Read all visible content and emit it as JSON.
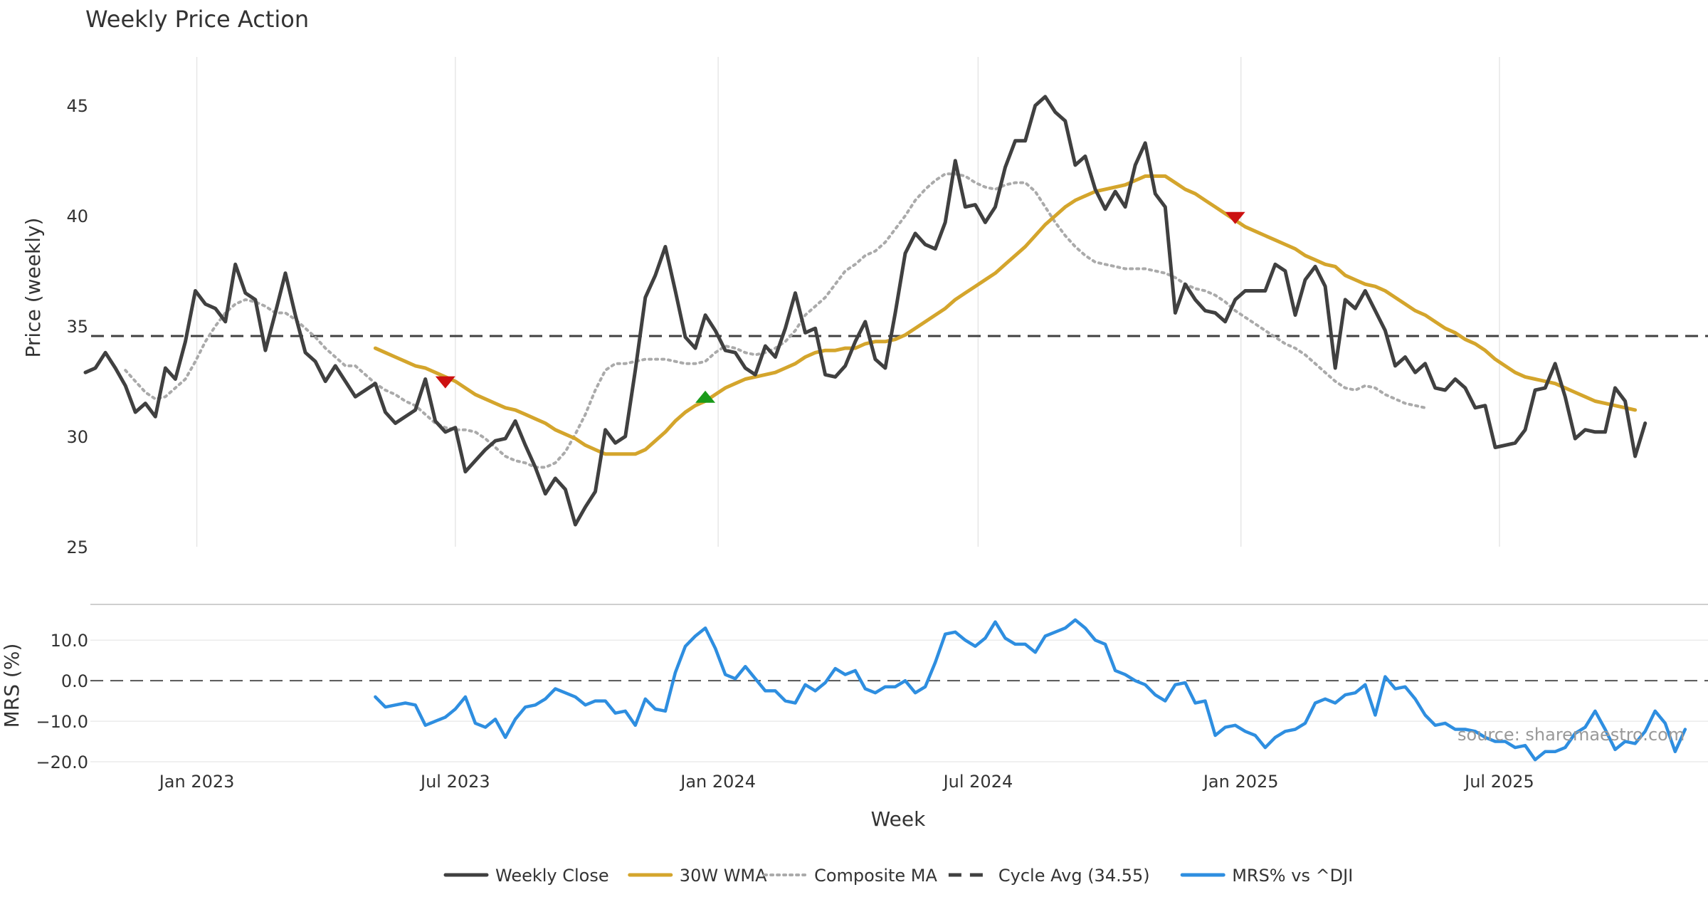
{
  "chart_data": {
    "title": "Weekly Price Action",
    "type": "line",
    "source_note": "source: sharemaestro.com",
    "x_range": [
      "2022-10-15",
      "2025-11-24"
    ],
    "x_ticks": [
      {
        "date": "2023-01-01",
        "label": "Jan 2023"
      },
      {
        "date": "2023-07-01",
        "label": "Jul 2023"
      },
      {
        "date": "2024-01-01",
        "label": "Jan 2024"
      },
      {
        "date": "2024-07-01",
        "label": "Jul 2024"
      },
      {
        "date": "2025-01-01",
        "label": "Jan 2025"
      },
      {
        "date": "2025-07-01",
        "label": "Jul 2025"
      }
    ],
    "xlabel": "Week",
    "price_panel": {
      "ylabel": "Price (weekly)",
      "ylim": [
        25,
        47.2
      ],
      "yticks": [
        25,
        30,
        35,
        40,
        45
      ],
      "grid": true,
      "series": [
        {
          "name": "Weekly Close",
          "color": "#404040",
          "style": "solid",
          "start": "2022-10-15",
          "step_days": 7,
          "values": [
            32.9,
            33.1,
            33.8,
            33.1,
            32.3,
            31.1,
            31.5,
            30.9,
            33.1,
            32.6,
            34.3,
            36.6,
            36.0,
            35.8,
            35.2,
            37.8,
            36.5,
            36.2,
            33.9,
            35.6,
            37.4,
            35.5,
            33.8,
            33.4,
            32.5,
            33.2,
            32.5,
            31.8,
            32.1,
            32.4,
            31.1,
            30.6,
            30.9,
            31.2,
            32.6,
            30.7,
            30.2,
            30.4,
            28.4,
            28.9,
            29.4,
            29.8,
            29.9,
            30.7,
            29.6,
            28.6,
            27.4,
            28.1,
            27.6,
            26.0,
            26.8,
            27.5,
            30.3,
            29.7,
            30.0,
            33.0,
            36.3,
            37.3,
            38.6,
            36.6,
            34.5,
            34.0,
            35.5,
            34.8,
            33.9,
            33.8,
            33.1,
            32.8,
            34.1,
            33.6,
            34.9,
            36.5,
            34.7,
            34.9,
            32.8,
            32.7,
            33.2,
            34.3,
            35.2,
            33.5,
            33.1,
            35.6,
            38.3,
            39.2,
            38.7,
            38.5,
            39.7,
            42.5,
            40.4,
            40.5,
            39.7,
            40.4,
            42.2,
            43.4,
            43.4,
            45.0,
            45.4,
            44.7,
            44.3,
            42.3,
            42.7,
            41.2,
            40.3,
            41.1,
            40.4,
            42.3,
            43.3,
            41.0,
            40.4,
            35.6,
            36.9,
            36.2,
            35.7,
            35.6,
            35.2,
            36.2,
            36.6,
            36.6,
            36.6,
            37.8,
            37.5,
            35.5,
            37.1,
            37.7,
            36.8,
            33.1,
            36.2,
            35.8,
            36.6,
            35.7,
            34.8,
            33.2,
            33.6,
            32.9,
            33.3,
            32.2,
            32.1,
            32.6,
            32.2,
            31.3,
            31.4,
            29.5,
            29.6,
            29.7,
            30.3,
            32.1,
            32.2,
            33.3,
            31.8,
            29.9,
            30.3,
            30.2,
            30.2,
            32.2,
            31.6,
            29.1,
            30.6
          ]
        },
        {
          "name": "30W WMA",
          "color": "#d4a52c",
          "style": "solid",
          "start": "2023-05-06",
          "step_days": 7,
          "values": [
            34.0,
            33.8,
            33.6,
            33.4,
            33.2,
            33.1,
            32.9,
            32.7,
            32.5,
            32.2,
            31.9,
            31.7,
            31.5,
            31.3,
            31.2,
            31.0,
            30.8,
            30.6,
            30.3,
            30.1,
            29.9,
            29.6,
            29.4,
            29.2,
            29.2,
            29.2,
            29.2,
            29.4,
            29.8,
            30.2,
            30.7,
            31.1,
            31.4,
            31.6,
            31.9,
            32.2,
            32.4,
            32.6,
            32.7,
            32.8,
            32.9,
            33.1,
            33.3,
            33.6,
            33.8,
            33.9,
            33.9,
            34.0,
            34.0,
            34.2,
            34.3,
            34.3,
            34.4,
            34.6,
            34.9,
            35.2,
            35.5,
            35.8,
            36.2,
            36.5,
            36.8,
            37.1,
            37.4,
            37.8,
            38.2,
            38.6,
            39.1,
            39.6,
            40.0,
            40.4,
            40.7,
            40.9,
            41.1,
            41.2,
            41.3,
            41.4,
            41.6,
            41.8,
            41.8,
            41.8,
            41.5,
            41.2,
            41.0,
            40.7,
            40.4,
            40.1,
            39.8,
            39.5,
            39.3,
            39.1,
            38.9,
            38.7,
            38.5,
            38.2,
            38.0,
            37.8,
            37.7,
            37.3,
            37.1,
            36.9,
            36.8,
            36.6,
            36.3,
            36.0,
            35.7,
            35.5,
            35.2,
            34.9,
            34.7,
            34.4,
            34.2,
            33.9,
            33.5,
            33.2,
            32.9,
            32.7,
            32.6,
            32.5,
            32.4,
            32.2,
            32.0,
            31.8,
            31.6,
            31.5,
            31.4,
            31.3,
            31.2
          ]
        },
        {
          "name": "Composite MA",
          "color": "#aaaaaa",
          "style": "dotted",
          "start": "2022-11-12",
          "step_days": 7,
          "values": [
            33.0,
            32.5,
            32.0,
            31.7,
            31.8,
            32.2,
            32.6,
            33.4,
            34.3,
            35.0,
            35.6,
            36.0,
            36.2,
            36.1,
            35.9,
            35.6,
            35.6,
            35.3,
            34.9,
            34.5,
            34.0,
            33.6,
            33.2,
            33.2,
            32.8,
            32.4,
            32.1,
            31.9,
            31.6,
            31.4,
            31.0,
            30.6,
            30.4,
            30.3,
            30.3,
            30.2,
            29.9,
            29.5,
            29.1,
            28.9,
            28.8,
            28.6,
            28.6,
            28.8,
            29.3,
            30.1,
            31.0,
            32.1,
            33.0,
            33.3,
            33.3,
            33.4,
            33.5,
            33.5,
            33.5,
            33.4,
            33.3,
            33.3,
            33.4,
            33.8,
            34.1,
            34.0,
            33.8,
            33.7,
            33.8,
            34.0,
            34.3,
            34.8,
            35.5,
            35.9,
            36.3,
            36.9,
            37.5,
            37.8,
            38.2,
            38.4,
            38.8,
            39.4,
            40.0,
            40.7,
            41.2,
            41.6,
            41.9,
            41.9,
            41.8,
            41.5,
            41.3,
            41.2,
            41.4,
            41.5,
            41.5,
            41.1,
            40.4,
            39.7,
            39.1,
            38.6,
            38.2,
            37.9,
            37.8,
            37.7,
            37.6,
            37.6,
            37.6,
            37.5,
            37.4,
            37.2,
            36.9,
            36.7,
            36.6,
            36.4,
            36.1,
            35.7,
            35.4,
            35.1,
            34.8,
            34.5,
            34.2,
            34.0,
            33.7,
            33.3,
            32.9,
            32.5,
            32.2,
            32.1,
            32.3,
            32.2,
            31.9,
            31.7,
            31.5,
            31.4,
            31.3
          ]
        },
        {
          "name": "Cycle Avg (34.55)",
          "color": "#404040",
          "style": "dashed",
          "constant": 34.55
        }
      ],
      "markers": [
        {
          "type": "sell",
          "date": "2023-06-24",
          "value": 32.45,
          "color": "#cc1111"
        },
        {
          "type": "buy",
          "date": "2023-12-23",
          "value": 31.8,
          "color": "#1a9a1a"
        },
        {
          "type": "sell",
          "date": "2024-12-28",
          "value": 39.9,
          "color": "#cc1111"
        }
      ]
    },
    "mrs_panel": {
      "ylabel": "MRS (%)",
      "ylim": [
        -20,
        19
      ],
      "yticks": [
        {
          "value": 10,
          "label": "10.0"
        },
        {
          "value": 0,
          "label": "0.0"
        },
        {
          "value": -10,
          "label": "−10.0"
        },
        {
          "value": -20,
          "label": "−20.0"
        }
      ],
      "zero_line": "dashed",
      "series": [
        {
          "name": "MRS% vs ^DJI",
          "color": "#2e8ee0",
          "style": "solid",
          "start": "2023-05-06",
          "step_days": 7,
          "values": [
            -4,
            -6.5,
            -6,
            -5.5,
            -6,
            -11,
            -10,
            -9,
            -7,
            -4,
            -10.5,
            -11.5,
            -9.5,
            -14,
            -9.5,
            -6.5,
            -6,
            -4.5,
            -2,
            -3,
            -4,
            -6,
            -5,
            -5,
            -8,
            -7.5,
            -11,
            -4.5,
            -7,
            -7.5,
            2,
            8.5,
            11,
            13,
            8,
            1.5,
            0.5,
            3.5,
            0.5,
            -2.5,
            -2.5,
            -5,
            -5.5,
            -1,
            -2.5,
            -0.5,
            3,
            1.5,
            2.5,
            -2,
            -3,
            -1.5,
            -1.5,
            0,
            -3,
            -1.5,
            4.5,
            11.5,
            12,
            10,
            8.5,
            10.5,
            14.5,
            10.5,
            9,
            9,
            7,
            11,
            12,
            13,
            15,
            13,
            10,
            9,
            2.5,
            1.5,
            0,
            -1,
            -3.5,
            -5,
            -1,
            -0.5,
            -5.5,
            -5,
            -13.5,
            -11.5,
            -11,
            -12.5,
            -13.5,
            -16.5,
            -14,
            -12.5,
            -12,
            -10.5,
            -5.5,
            -4.5,
            -5.5,
            -3.5,
            -3,
            -1,
            -8.5,
            1,
            -2,
            -1.5,
            -4.5,
            -8.5,
            -11,
            -10.5,
            -12,
            -12,
            -12.5,
            -14,
            -15,
            -15,
            -16.5,
            -16,
            -19.5,
            -17.5,
            -17.5,
            -16.5,
            -13,
            -11.5,
            -7.5,
            -12,
            -17,
            -15,
            -15.5,
            -12.5,
            -7.5,
            -10.5,
            -17.5,
            -12
          ]
        }
      ]
    },
    "legend": {
      "placement": "bottom-center",
      "entries": [
        {
          "label": "Weekly Close",
          "color": "#404040",
          "style": "solid"
        },
        {
          "label": "30W WMA",
          "color": "#d4a52c",
          "style": "solid"
        },
        {
          "label": "Composite MA",
          "color": "#aaaaaa",
          "style": "dotted"
        },
        {
          "label": "Cycle Avg (34.55)",
          "color": "#404040",
          "style": "dashed"
        },
        {
          "label": "MRS% vs ^DJI",
          "color": "#2e8ee0",
          "style": "solid"
        }
      ]
    }
  }
}
